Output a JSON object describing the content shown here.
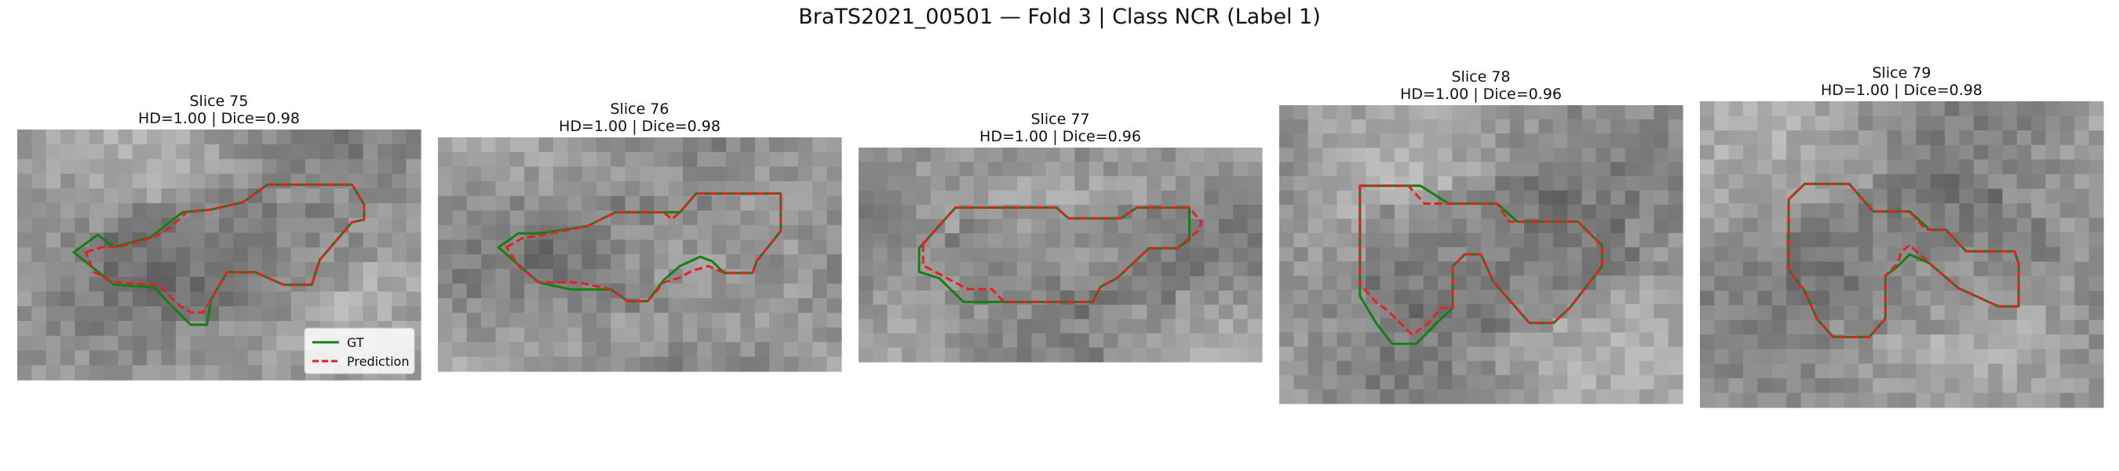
{
  "figure": {
    "title": "BraTS2021_00501 — Fold 3 | Class NCR (Label 1)"
  },
  "colors": {
    "gt": "#138013",
    "prediction": "#e62020",
    "gt_and_pred_overlap": "#b03a1c"
  },
  "legend": {
    "placement": "lower-right of first panel",
    "entries": [
      {
        "label": "GT",
        "style": "solid",
        "color": "#138013"
      },
      {
        "label": "Prediction",
        "style": "dashed",
        "color": "#e62020"
      }
    ]
  },
  "chart_data": {
    "type": "image-contour-overlay",
    "panels": [
      {
        "slice_label": "Slice 75",
        "metrics_label": "HD=1.00 | Dice=0.98",
        "slice": 75,
        "hd": 1.0,
        "dice": 0.98
      },
      {
        "slice_label": "Slice 76",
        "metrics_label": "HD=1.00 | Dice=0.98",
        "slice": 76,
        "hd": 1.0,
        "dice": 0.98
      },
      {
        "slice_label": "Slice 77",
        "metrics_label": "HD=1.00 | Dice=0.96",
        "slice": 77,
        "hd": 1.0,
        "dice": 0.96
      },
      {
        "slice_label": "Slice 78",
        "metrics_label": "HD=1.00 | Dice=0.96",
        "slice": 78,
        "hd": 1.0,
        "dice": 0.96
      },
      {
        "slice_label": "Slice 79",
        "metrics_label": "HD=1.00 | Dice=0.98",
        "slice": 79,
        "hd": 1.0,
        "dice": 0.98
      }
    ]
  }
}
